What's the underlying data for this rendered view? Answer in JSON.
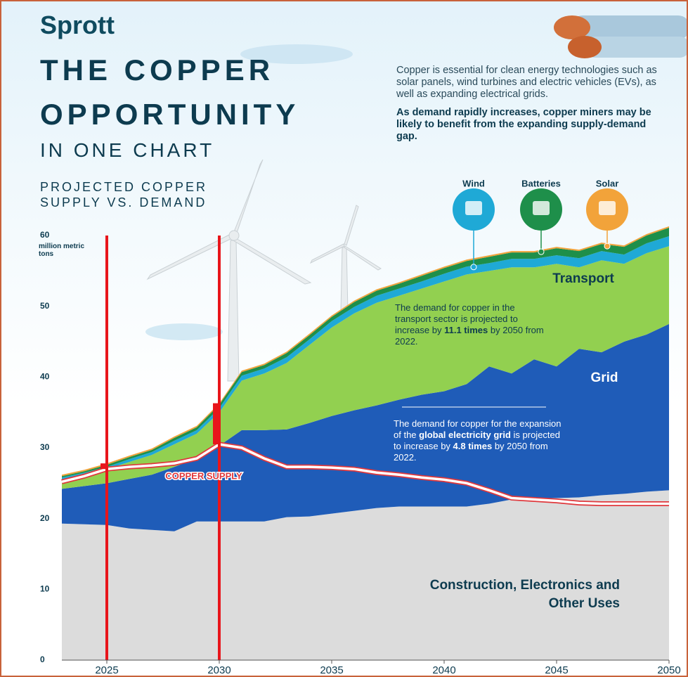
{
  "header": {
    "brand": "Sprott",
    "title_lines": [
      "THE COPPER",
      "OPPORTUNITY"
    ],
    "subtitle": "IN ONE CHART",
    "description": "Copper is essential for clean energy technologies such as solar panels, wind turbines and electric vehicles (EVs), as well as expanding electrical grids.",
    "highlight": "As demand rapidly increases, copper miners may be likely to benefit from the expanding supply-demand gap."
  },
  "chart_data": {
    "type": "stacked_area",
    "title_lines": [
      "PROJECTED COPPER",
      "SUPPLY VS. DEMAND"
    ],
    "y_unit": "million metric tons",
    "x": [
      2023,
      2024,
      2025,
      2026,
      2027,
      2028,
      2029,
      2030,
      2031,
      2032,
      2033,
      2034,
      2035,
      2036,
      2037,
      2038,
      2039,
      2040,
      2041,
      2042,
      2043,
      2044,
      2045,
      2046,
      2047,
      2048,
      2049,
      2050
    ],
    "xlim": [
      2023,
      2050
    ],
    "xticks": [
      2025,
      2030,
      2035,
      2040,
      2045,
      2050
    ],
    "ylim": [
      0,
      60
    ],
    "yticks": [
      0,
      10,
      20,
      30,
      40,
      50,
      60
    ],
    "grid": false,
    "series": [
      {
        "name": "Construction, Electronics and Other Uses",
        "color": "#dcdcdc",
        "values": [
          19.3,
          19.2,
          19.1,
          18.6,
          18.4,
          18.2,
          19.6,
          19.6,
          19.6,
          19.6,
          20.2,
          20.3,
          20.7,
          21.1,
          21.5,
          21.7,
          21.7,
          21.7,
          21.7,
          22.1,
          22.7,
          22.9,
          22.9,
          23.0,
          23.3,
          23.5,
          23.8,
          24.0
        ]
      },
      {
        "name": "Grid",
        "color": "#1f5cb8",
        "values": [
          4.9,
          5.4,
          5.9,
          7.0,
          7.8,
          9.1,
          8.9,
          10.7,
          12.9,
          12.9,
          12.4,
          13.2,
          13.8,
          14.2,
          14.5,
          15.1,
          15.8,
          16.3,
          17.3,
          19.4,
          17.8,
          19.6,
          18.6,
          21.0,
          20.2,
          21.5,
          22.2,
          23.5
        ]
      },
      {
        "name": "Transport",
        "color": "#92d050",
        "values": [
          1.3,
          1.6,
          2.0,
          2.4,
          2.8,
          3.2,
          3.5,
          4.7,
          7.0,
          8.0,
          9.4,
          11.0,
          12.5,
          13.7,
          14.5,
          14.7,
          15.0,
          15.5,
          15.5,
          13.5,
          15.0,
          13.0,
          14.5,
          11.5,
          13.0,
          11.0,
          11.5,
          11.0
        ]
      },
      {
        "name": "Wind",
        "color": "#1fa9d6",
        "values": [
          0.3,
          0.3,
          0.3,
          0.4,
          0.4,
          0.5,
          0.5,
          0.6,
          0.7,
          0.7,
          0.8,
          0.8,
          0.9,
          0.9,
          1.0,
          1.0,
          1.0,
          1.1,
          1.1,
          1.1,
          1.2,
          1.2,
          1.2,
          1.3,
          1.3,
          1.3,
          1.4,
          1.4
        ]
      },
      {
        "name": "Batteries",
        "color": "#1e8f4a",
        "values": [
          0.2,
          0.2,
          0.3,
          0.3,
          0.3,
          0.4,
          0.4,
          0.5,
          0.5,
          0.5,
          0.6,
          0.6,
          0.6,
          0.7,
          0.7,
          0.7,
          0.8,
          0.8,
          0.8,
          0.9,
          0.9,
          0.9,
          1.0,
          1.0,
          1.0,
          1.1,
          1.1,
          1.2
        ]
      },
      {
        "name": "Solar",
        "color": "#f2a33a",
        "values": [
          0.2,
          0.2,
          0.2,
          0.2,
          0.2,
          0.2,
          0.2,
          0.2,
          0.2,
          0.2,
          0.2,
          0.2,
          0.2,
          0.2,
          0.2,
          0.2,
          0.2,
          0.2,
          0.2,
          0.2,
          0.2,
          0.2,
          0.2,
          0.2,
          0.2,
          0.2,
          0.2,
          0.2
        ]
      }
    ],
    "supply": {
      "name": "COPPER SUPPLY",
      "color": "#e0383c",
      "values": [
        25.2,
        26.0,
        27.0,
        27.3,
        27.5,
        27.8,
        28.5,
        30.5,
        30.0,
        28.5,
        27.3,
        27.3,
        27.2,
        27.0,
        26.5,
        26.2,
        25.8,
        25.5,
        25.0,
        24.0,
        22.9,
        22.7,
        22.5,
        22.2,
        22.1,
        22.1,
        22.1,
        22.1
      ]
    },
    "highlight_years": [
      2025,
      2030
    ],
    "transport_note": [
      "The demand for copper in the transport sector is projected to increase by ",
      "11.1 times",
      " by 2050 from 2022."
    ],
    "grid_note": [
      "The demand for copper for the expansion of the ",
      "global electricity grid",
      " is projected to increase by ",
      "4.8 times",
      " by 2050 from 2022."
    ]
  }
}
